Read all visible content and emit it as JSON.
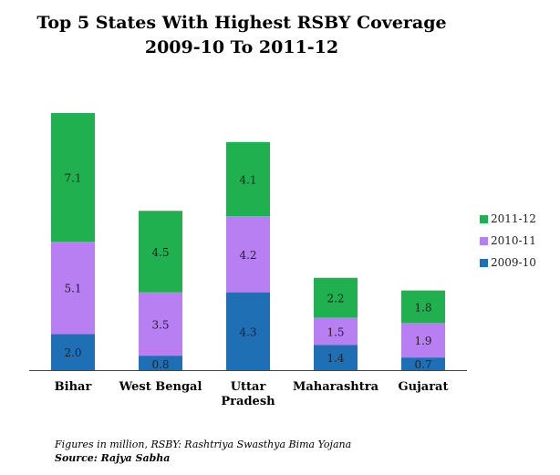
{
  "chart_data": {
    "type": "bar",
    "stacked": true,
    "title": "Top 5 States With Highest RSBY Coverage",
    "subtitle": "2009-10 To 2011-12",
    "categories": [
      "Bihar",
      "West Bengal",
      "Uttar Pradesh",
      "Maharashtra",
      "Gujarat"
    ],
    "category_lines": [
      [
        "Bihar"
      ],
      [
        "West Bengal"
      ],
      [
        "Uttar",
        "Pradesh"
      ],
      [
        "Maharashtra"
      ],
      [
        "Gujarat"
      ]
    ],
    "series": [
      {
        "name": "2009-10",
        "color": "#1f6fb5",
        "values": [
          2.0,
          0.8,
          4.3,
          1.4,
          0.7
        ]
      },
      {
        "name": "2010-11",
        "color": "#b77ff2",
        "values": [
          5.1,
          3.5,
          4.2,
          1.5,
          1.9
        ]
      },
      {
        "name": "2011-12",
        "color": "#21b04f",
        "values": [
          7.1,
          4.5,
          4.1,
          2.2,
          1.8
        ]
      }
    ],
    "data_labels": true,
    "legend": "right",
    "legend_order": [
      "2011-12",
      "2010-11",
      "2009-10"
    ],
    "ylim": [
      0,
      14.2
    ],
    "y_axis_visible": false,
    "grid": false
  },
  "footnote": {
    "note": "Figures in million, RSBY: Rashtriya Swasthya Bima Yojana",
    "source": "Source: Rajya Sabha"
  }
}
